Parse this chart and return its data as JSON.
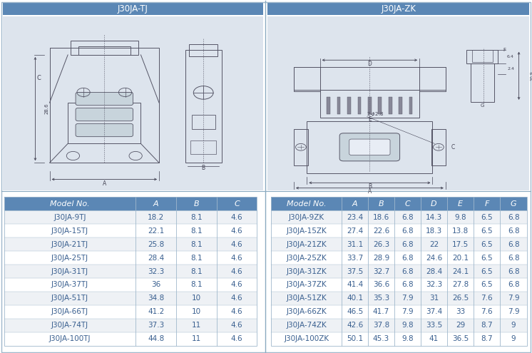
{
  "left_title": "J30JA-TJ",
  "right_title": "J30JA-ZK",
  "header_bg": "#5b87b5",
  "header_text_color": "#ffffff",
  "row_bg_odd": "#eef1f5",
  "row_bg_even": "#ffffff",
  "diagram_bg": "#dde4ed",
  "table_text_color": "#3a6090",
  "header_row_bg": "#5b87b5",
  "left_headers": [
    "Model No.",
    "A",
    "B",
    "C"
  ],
  "right_headers": [
    "Model No.",
    "A",
    "B",
    "C",
    "D",
    "E",
    "F",
    "G"
  ],
  "left_data": [
    [
      "J30JA-9TJ",
      "18.2",
      "8.1",
      "4.6"
    ],
    [
      "J30JA-15TJ",
      "22.1",
      "8.1",
      "4.6"
    ],
    [
      "J30JA-21TJ",
      "25.8",
      "8.1",
      "4.6"
    ],
    [
      "J30JA-25TJ",
      "28.4",
      "8.1",
      "4.6"
    ],
    [
      "J30JA-31TJ",
      "32.3",
      "8.1",
      "4.6"
    ],
    [
      "J30JA-37TJ",
      "36",
      "8.1",
      "4.6"
    ],
    [
      "J30JA-51TJ",
      "34.8",
      "10",
      "4.6"
    ],
    [
      "J30JA-66TJ",
      "41.2",
      "10",
      "4.6"
    ],
    [
      "J30JA-74TJ",
      "37.3",
      "11",
      "4.6"
    ],
    [
      "J30JA-100TJ",
      "44.8",
      "11",
      "4.6"
    ]
  ],
  "right_data": [
    [
      "J30JA-9ZK",
      "23.4",
      "18.6",
      "6.8",
      "14.3",
      "9.8",
      "6.5",
      "6.8"
    ],
    [
      "J30JA-15ZK",
      "27.4",
      "22.6",
      "6.8",
      "18.3",
      "13.8",
      "6.5",
      "6.8"
    ],
    [
      "J30JA-21ZK",
      "31.1",
      "26.3",
      "6.8",
      "22",
      "17.5",
      "6.5",
      "6.8"
    ],
    [
      "J30JA-25ZK",
      "33.7",
      "28.9",
      "6.8",
      "24.6",
      "20.1",
      "6.5",
      "6.8"
    ],
    [
      "J30JA-31ZK",
      "37.5",
      "32.7",
      "6.8",
      "28.4",
      "24.1",
      "6.5",
      "6.8"
    ],
    [
      "J30JA-37ZK",
      "41.4",
      "36.6",
      "6.8",
      "32.3",
      "27.8",
      "6.5",
      "6.8"
    ],
    [
      "J30JA-51ZK",
      "40.1",
      "35.3",
      "7.9",
      "31",
      "26.5",
      "7.6",
      "7.9"
    ],
    [
      "J30JA-66ZK",
      "46.5",
      "41.7",
      "7.9",
      "37.4",
      "33",
      "7.6",
      "7.9"
    ],
    [
      "J30JA-74ZK",
      "42.6",
      "37.8",
      "9.8",
      "33.5",
      "29",
      "8.7",
      "9"
    ],
    [
      "J30JA-100ZK",
      "50.1",
      "45.3",
      "9.8",
      "41",
      "36.5",
      "8.7",
      "9"
    ]
  ],
  "border_color": "#a0b8cc",
  "divider_color": "#8aaac0",
  "title_font_size": 8.5,
  "table_header_font_size": 8,
  "table_font_size": 7.5,
  "line_color": "#555566",
  "dim_color": "#444455"
}
